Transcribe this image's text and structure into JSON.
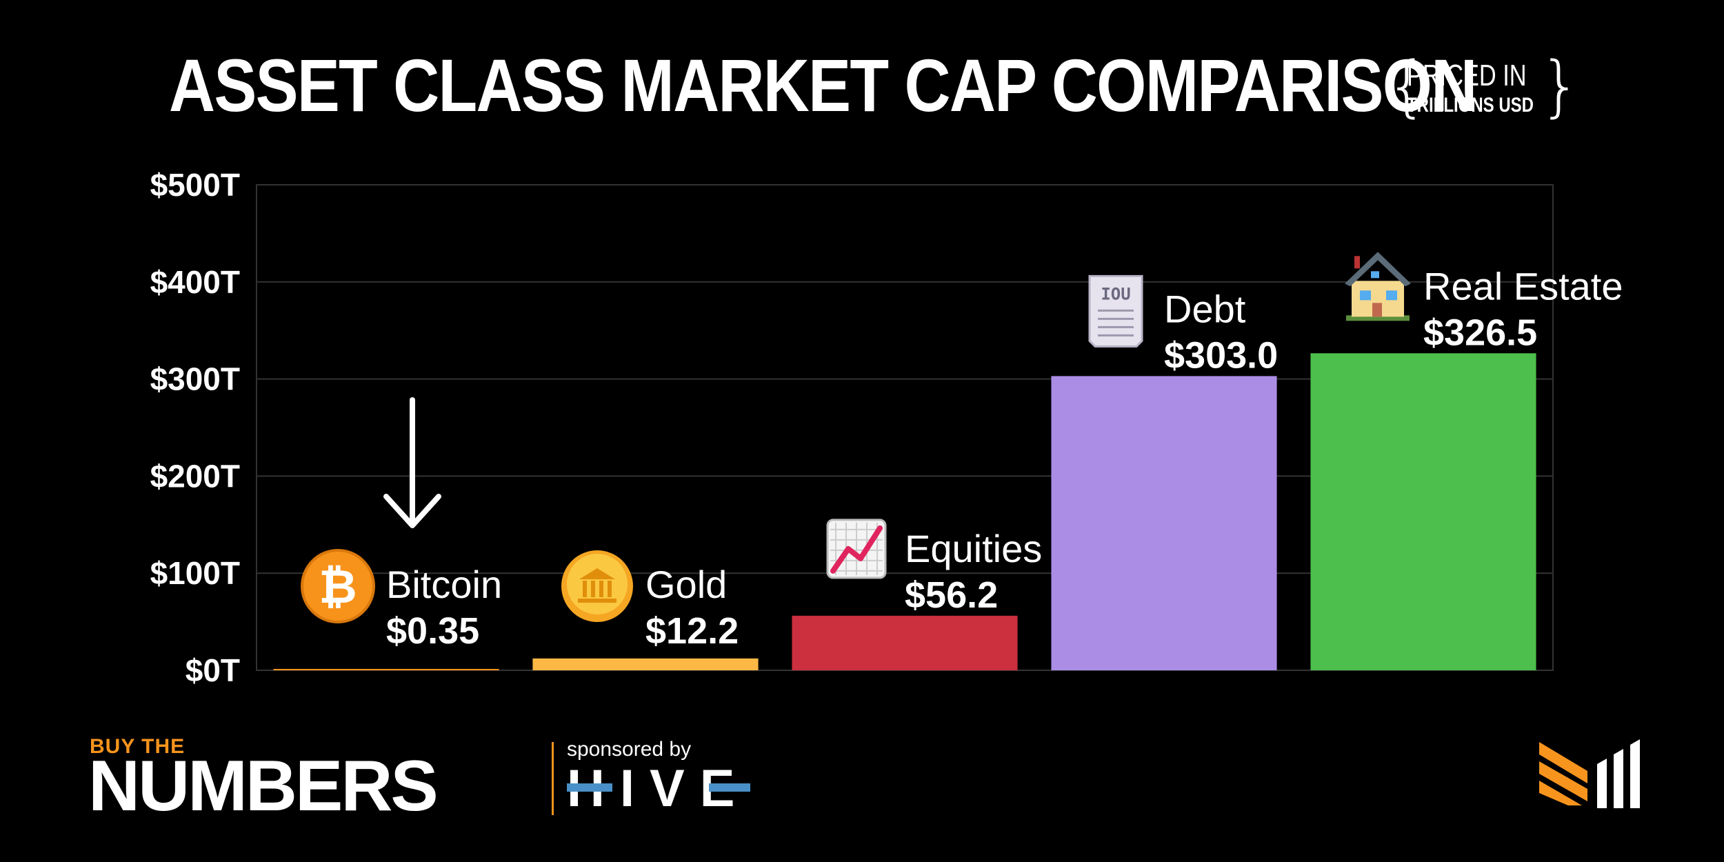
{
  "title": "ASSET CLASS MARKET CAP COMPARISON",
  "priced_in": {
    "line1": "PRICED IN",
    "line2": "TRILLIONS USD"
  },
  "chart_data": {
    "type": "bar",
    "categories": [
      "Bitcoin",
      "Gold",
      "Equities",
      "Debt",
      "Real Estate"
    ],
    "values": [
      0.35,
      12.2,
      56.2,
      303.0,
      326.5
    ],
    "value_labels": [
      "$0.35",
      "$12.2",
      "$56.2",
      "$303.0",
      "$326.5"
    ],
    "colors": [
      "#f7931a",
      "#fbb844",
      "#cc2f3e",
      "#ab8de6",
      "#4cbf4c"
    ],
    "icons": [
      "bitcoin-icon",
      "coin-icon",
      "chart-increasing-icon",
      "receipt-icon",
      "house-icon"
    ],
    "y_ticks": [
      0,
      100,
      200,
      300,
      400,
      500
    ],
    "y_tick_labels": [
      "$0T",
      "$100T",
      "$200T",
      "$300T",
      "$400T",
      "$500T"
    ],
    "ylim": [
      0,
      500
    ],
    "grid": true,
    "annotation": "down-arrow-icon pointing at Bitcoin"
  },
  "branding": {
    "buy_the": "BUY THE",
    "numbers": "NUMBERS",
    "sponsored_by": "sponsored by",
    "hive": "HIVE",
    "accent": "#f7941d"
  }
}
